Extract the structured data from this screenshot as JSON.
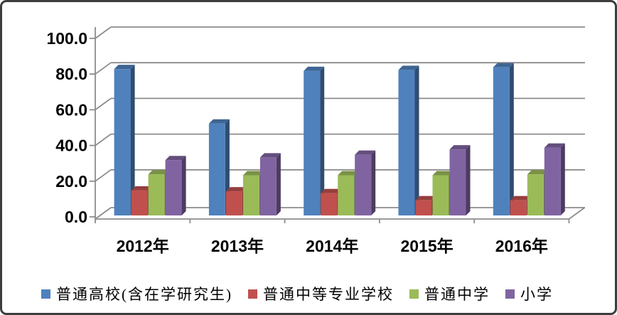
{
  "chart_data": {
    "type": "bar",
    "style": "3d-clustered-column",
    "title": "",
    "xlabel": "",
    "ylabel": "",
    "categories": [
      "2012年",
      "2013年",
      "2014年",
      "2015年",
      "2016年"
    ],
    "series": [
      {
        "name": "普通高校(含在学研究生)",
        "color": "#4F81BD",
        "values": [
          82.0,
          51.5,
          81.0,
          81.5,
          83.0
        ]
      },
      {
        "name": "普通中等专业学校",
        "color": "#C0504D",
        "values": [
          14.0,
          13.5,
          12.5,
          8.5,
          8.5
        ]
      },
      {
        "name": "普通中学",
        "color": "#9BBB59",
        "values": [
          23.0,
          22.5,
          22.5,
          22.5,
          23.0
        ]
      },
      {
        "name": "小学",
        "color": "#8064A2",
        "values": [
          31.0,
          32.5,
          34.0,
          37.0,
          38.0
        ]
      }
    ],
    "ylim": [
      0,
      100
    ],
    "ytick_step": 20,
    "ytick_labels": [
      "0.0",
      "20.0",
      "40.0",
      "60.0",
      "80.0",
      "100.0"
    ],
    "grid": true,
    "legend_position": "bottom"
  },
  "frame": {
    "background": "#ffffff",
    "border_color": "#3d3d3d",
    "gridline_color": "#8c8c8c",
    "axis_color": "#8c8c8c",
    "text_color": "#000000"
  }
}
